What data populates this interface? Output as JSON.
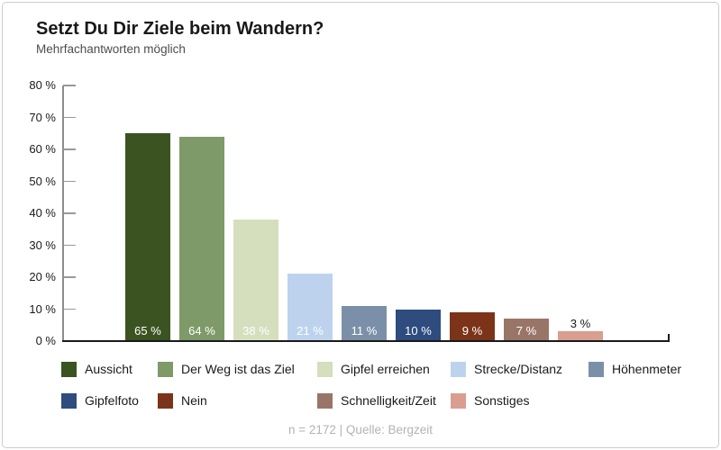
{
  "chart_data": {
    "type": "bar",
    "title": "Setzt Du Dir Ziele beim Wandern?",
    "subtitle": "Mehrfachantworten möglich",
    "categories": [
      "Aussicht",
      "Der Weg ist das Ziel",
      "Gipfel erreichen",
      "Strecke/Distanz",
      "Höhenmeter",
      "Gipfelfoto",
      "Nein",
      "Schnelligkeit/Zeit",
      "Sonstiges"
    ],
    "values": [
      65,
      64,
      38,
      21,
      11,
      10,
      9,
      7,
      3
    ],
    "colors": [
      "#3a5321",
      "#7d9a68",
      "#d5debd",
      "#bdd3ed",
      "#7b90a8",
      "#2e4c7e",
      "#7b3419",
      "#997568",
      "#d99e90"
    ],
    "unit": "%",
    "value_label_suffix": " %",
    "ytick_suffix": " %",
    "ylim": [
      0,
      80
    ],
    "ytick_step": 10,
    "grid": false,
    "legend_position": "bottom",
    "source_note": "n = 2172 | Quelle: Bergzeit"
  }
}
